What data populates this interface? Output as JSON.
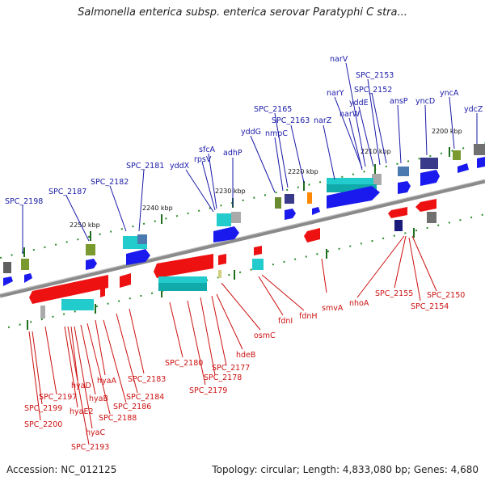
{
  "title": "Salmonella enterica subsp. enterica serovar Paratyphi C stra...",
  "accession": "Accession: NC_012125",
  "summary": "Topology: circular; Length: 4,833,080 bp; Genes: 4,680",
  "colors": {
    "top_label": "#1a1aa8",
    "bottom_label": "#cc1111",
    "backbone": "#8a8a8a"
  },
  "ticks": [
    "2200 kbp",
    "2210 kbp",
    "2220 kbp",
    "2230 kbp",
    "2240 kbp",
    "2250 kbp"
  ],
  "top_labels": [
    "narV",
    "SPC_2153",
    "narY",
    "SPC_2152",
    "yddE",
    "ansP",
    "yncD",
    "yncA",
    "ydcZ",
    "narW",
    "SPC_2165",
    "nmpC",
    "SPC_2163",
    "narZ",
    "yddG",
    "sfcA",
    "rpsV",
    "adhP",
    "yddX",
    "SPC_2181",
    "SPC_2182",
    "SPC_2187",
    "SPC_2198"
  ],
  "bottom_labels": [
    "smvA",
    "nhoA",
    "SPC_2155",
    "SPC_2150",
    "SPC_2154",
    "fdnH",
    "fdnI",
    "osmC",
    "hdeB",
    "SPC_2177",
    "SPC_2178",
    "SPC_2180",
    "SPC_2179",
    "SPC_2183",
    "hyaA",
    "SPC_2184",
    "SPC_2186",
    "SPC_2188",
    "hyaB",
    "hyaD",
    "SPC_2197",
    "SPC_2199",
    "hyaE2",
    "SPC_2200",
    "hyaC",
    "SPC_2193"
  ]
}
